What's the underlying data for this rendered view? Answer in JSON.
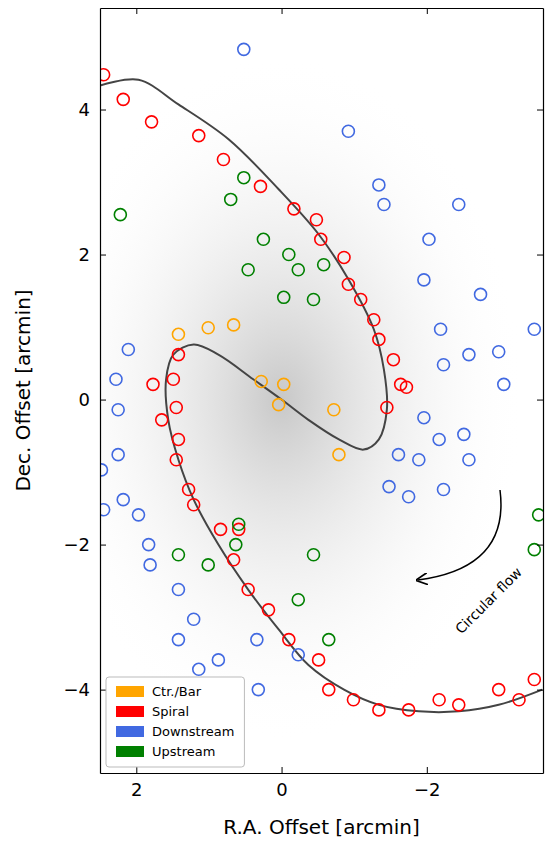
{
  "chart_data": {
    "type": "scatter",
    "x_label": "R.A. Offset [arcmin]",
    "y_label": "Dec. Offset [arcmin]",
    "xlim": [
      2.5,
      -3.6
    ],
    "ylim": [
      -5.15,
      5.4
    ],
    "xticks": [
      2,
      0,
      {
        "value": -2,
        "label": "−2"
      }
    ],
    "yticks": [
      {
        "value": -4,
        "label": "−4"
      },
      {
        "value": -2,
        "label": "−2"
      },
      0,
      2,
      4
    ],
    "legend": "lower left",
    "marker": "circle",
    "annotations": [
      {
        "text": "Circular flow"
      }
    ],
    "curves": [
      {
        "color": "#444444",
        "line_style": "solid",
        "x": [
          -3.59,
          -2.99,
          -2.44,
          -1.89,
          -1.34,
          -0.86,
          -0.37,
          0.04,
          0.46,
          0.87,
          1.21,
          1.42,
          1.56,
          1.59,
          1.49,
          1.21,
          0.87,
          0.39,
          0,
          -0.37,
          -0.79,
          -1.13,
          -1.34,
          -1.45,
          -1.41,
          -1.27,
          -0.92,
          -0.51,
          0.04,
          0.73,
          1.42,
          1.97,
          2.5
        ],
        "y": [
          -4.0,
          -4.21,
          -4.3,
          -4.3,
          -4.21,
          -4.0,
          -3.66,
          -3.17,
          -2.62,
          -2.0,
          -1.38,
          -0.83,
          -0.28,
          0.28,
          0.62,
          0.76,
          0.62,
          0.28,
          0,
          -0.28,
          -0.55,
          -0.69,
          -0.55,
          -0.14,
          0.41,
          0.97,
          1.66,
          2.28,
          2.9,
          3.59,
          4.07,
          4.41,
          4.33
        ]
      }
    ],
    "series": [
      {
        "name": "Ctr./Bar",
        "color": "#ffa500",
        "x": [
          1.42,
          1.01,
          0.66,
          0.28,
          -0.03,
          0.04,
          -0.72,
          -0.79
        ],
        "values": [
          0.9,
          0.99,
          1.03,
          0.25,
          0.21,
          -0.07,
          -0.14,
          -0.76
        ]
      },
      {
        "name": "Spiral",
        "color": "#ff0000",
        "x": [
          2.45,
          2.18,
          1.79,
          1.14,
          0.8,
          0.29,
          -0.17,
          -0.48,
          -0.54,
          -0.86,
          -0.92,
          -1.09,
          -1.27,
          -1.34,
          -1.54,
          -1.64,
          -1.45,
          -1.72,
          1.42,
          1.49,
          1.77,
          1.45,
          1.65,
          1.42,
          1.45,
          1.28,
          1.21,
          0.84,
          0.59,
          0.66,
          0.46,
          0.18,
          -0.1,
          -0.51,
          -0.65,
          -0.99,
          -1.34,
          -1.75,
          -2.17,
          -2.44,
          -2.99,
          -3.27,
          -3.48
        ],
        "values": [
          4.48,
          4.14,
          3.83,
          3.64,
          3.31,
          2.94,
          2.63,
          2.48,
          2.21,
          1.96,
          1.59,
          1.38,
          1.1,
          0.83,
          0.55,
          0.21,
          -0.11,
          0.17,
          0.62,
          0.28,
          0.21,
          -0.11,
          -0.28,
          -0.55,
          -0.83,
          -1.24,
          -1.45,
          -1.79,
          -1.79,
          -2.21,
          -2.62,
          -2.9,
          -3.31,
          -3.59,
          -4.0,
          -4.14,
          -4.28,
          -4.28,
          -4.14,
          -4.21,
          -4.0,
          -4.14,
          -3.86
        ]
      },
      {
        "name": "Downstream",
        "color": "#4169e1",
        "x": [
          0.52,
          -0.92,
          -1.34,
          -1.41,
          -2.03,
          -2.44,
          -2.74,
          -1.96,
          -2.19,
          -2.23,
          -2.58,
          -2.99,
          -3.06,
          -1.96,
          -2.17,
          -2.51,
          -1.89,
          -1.61,
          -1.48,
          -1.75,
          -2.23,
          -2.58,
          2.11,
          2.28,
          2.25,
          2.25,
          2.48,
          2.45,
          2.18,
          1.97,
          1.83,
          1.81,
          1.42,
          1.21,
          1.42,
          1.14,
          0.87,
          0.34,
          -0.23,
          0.32,
          0.87,
          -3.48
        ],
        "values": [
          4.83,
          3.7,
          2.96,
          2.69,
          2.21,
          2.69,
          1.45,
          1.65,
          0.97,
          0.48,
          0.62,
          0.66,
          0.21,
          -0.25,
          -0.55,
          -0.48,
          -0.83,
          -0.76,
          -1.2,
          -1.34,
          -1.24,
          -0.83,
          0.69,
          0.28,
          -0.14,
          -0.76,
          -0.97,
          -1.52,
          -1.38,
          -1.59,
          -2.0,
          -2.28,
          -2.62,
          -3.03,
          -3.31,
          -3.72,
          -3.59,
          -3.31,
          -3.52,
          -4.0,
          -4.14,
          0.97
        ]
      },
      {
        "name": "Upstream",
        "color": "#008000",
        "x": [
          0.52,
          0.7,
          2.22,
          0.25,
          -0.1,
          -0.23,
          -0.58,
          0.46,
          -0.03,
          -0.44,
          1.42,
          1.01,
          0.63,
          0.59,
          -0.44,
          -0.23,
          -0.65,
          -3.54,
          -3.48
        ],
        "values": [
          3.06,
          2.76,
          2.55,
          2.21,
          2.0,
          1.79,
          1.86,
          1.79,
          1.41,
          1.38,
          -2.14,
          -2.28,
          -2.0,
          -1.72,
          -2.14,
          -2.76,
          -3.31,
          -1.59,
          -2.07
        ]
      }
    ]
  }
}
